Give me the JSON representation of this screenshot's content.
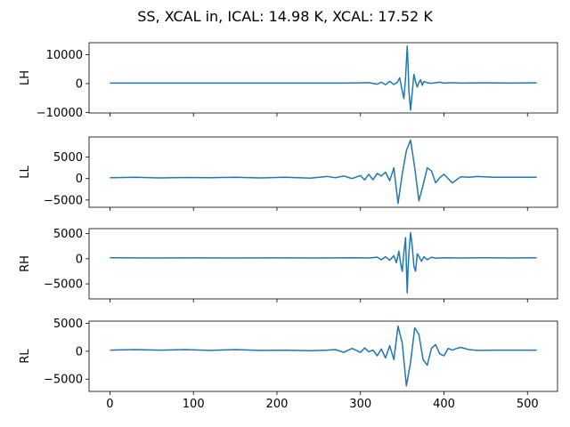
{
  "figure": {
    "title": "SS, XCAL in, ICAL: 14.98 K, XCAL: 17.52 K",
    "background": "#ffffff",
    "line_color": "#1f77b4"
  },
  "chart_data": [
    {
      "type": "line",
      "name": "LH",
      "ylabel": "LH",
      "xlim": [
        -25,
        536
      ],
      "ylim": [
        -10200,
        14200
      ],
      "yticks": [
        -10000,
        0,
        10000
      ],
      "ytick_labels": [
        "−10000",
        "0",
        "10000"
      ],
      "xticks": [
        0,
        100,
        200,
        300,
        400,
        500
      ],
      "xtick_labels": [],
      "grid": false,
      "x": [
        0,
        50,
        100,
        150,
        200,
        250,
        280,
        300,
        310,
        320,
        325,
        330,
        335,
        340,
        344,
        347,
        350,
        352,
        354,
        356,
        357,
        358,
        360,
        362,
        364,
        366,
        368,
        370,
        372,
        374,
        376,
        380,
        385,
        390,
        395,
        400,
        410,
        420,
        450,
        480,
        511
      ],
      "y": [
        200,
        180,
        180,
        200,
        200,
        200,
        200,
        250,
        350,
        -200,
        500,
        -400,
        800,
        -300,
        400,
        2000,
        -2500,
        -5200,
        2000,
        13000,
        6500,
        -2500,
        -9200,
        -3000,
        3200,
        700,
        -1200,
        300,
        1300,
        -600,
        700,
        300,
        100,
        300,
        500,
        200,
        300,
        200,
        250,
        200,
        250
      ]
    },
    {
      "type": "line",
      "name": "LL",
      "ylabel": "LL",
      "xlim": [
        -25,
        536
      ],
      "ylim": [
        -6700,
        9700
      ],
      "yticks": [
        -5000,
        0,
        5000
      ],
      "ytick_labels": [
        "−5000",
        "0",
        "5000"
      ],
      "xticks": [
        0,
        100,
        200,
        300,
        400,
        500
      ],
      "xtick_labels": [],
      "grid": false,
      "x": [
        0,
        30,
        60,
        90,
        120,
        150,
        180,
        210,
        240,
        260,
        270,
        280,
        290,
        300,
        305,
        310,
        315,
        320,
        325,
        330,
        335,
        340,
        345,
        350,
        355,
        360,
        365,
        370,
        375,
        380,
        385,
        390,
        395,
        400,
        405,
        410,
        420,
        430,
        440,
        460,
        480,
        511
      ],
      "y": [
        200,
        300,
        150,
        250,
        200,
        300,
        150,
        300,
        100,
        500,
        200,
        600,
        0,
        700,
        -300,
        1000,
        -300,
        1200,
        600,
        1500,
        -500,
        2500,
        -5800,
        1000,
        6500,
        9000,
        2500,
        -5200,
        -1500,
        2500,
        1800,
        -1000,
        200,
        1000,
        0,
        -1000,
        400,
        300,
        500,
        300,
        300,
        300
      ]
    },
    {
      "type": "line",
      "name": "RH",
      "ylabel": "RH",
      "xlim": [
        -25,
        536
      ],
      "ylim": [
        -8000,
        6000
      ],
      "yticks": [
        -5000,
        0,
        5000
      ],
      "ytick_labels": [
        "−5000",
        "0",
        "5000"
      ],
      "xticks": [
        0,
        100,
        200,
        300,
        400,
        500
      ],
      "xtick_labels": [],
      "grid": false,
      "x": [
        0,
        50,
        100,
        150,
        200,
        250,
        290,
        310,
        320,
        325,
        330,
        335,
        340,
        343,
        346,
        348,
        350,
        352,
        354,
        356,
        357,
        358,
        360,
        362,
        364,
        366,
        368,
        370,
        373,
        376,
        380,
        385,
        390,
        400,
        420,
        450,
        480,
        511
      ],
      "y": [
        200,
        150,
        180,
        150,
        180,
        150,
        200,
        150,
        300,
        -200,
        400,
        -300,
        600,
        -800,
        1500,
        -800,
        -2500,
        1200,
        4200,
        -6800,
        -2000,
        1000,
        5200,
        2500,
        -1500,
        -2500,
        1000,
        500,
        -500,
        400,
        -200,
        300,
        100,
        200,
        150,
        200,
        150,
        200
      ]
    },
    {
      "type": "line",
      "name": "RL",
      "ylabel": "RL",
      "xlim": [
        -25,
        536
      ],
      "ylim": [
        -7200,
        5400
      ],
      "yticks": [
        -5000,
        0,
        5000
      ],
      "ytick_labels": [
        "−5000",
        "0",
        "5000"
      ],
      "xticks": [
        0,
        100,
        200,
        300,
        400,
        500
      ],
      "xtick_labels": [
        "0",
        "100",
        "200",
        "300",
        "400",
        "500"
      ],
      "grid": false,
      "x": [
        0,
        30,
        60,
        90,
        120,
        150,
        180,
        210,
        240,
        260,
        270,
        280,
        290,
        300,
        305,
        310,
        315,
        320,
        325,
        330,
        335,
        340,
        345,
        350,
        355,
        360,
        365,
        370,
        375,
        380,
        385,
        390,
        395,
        400,
        405,
        410,
        415,
        420,
        430,
        440,
        460,
        480,
        511
      ],
      "y": [
        200,
        300,
        200,
        300,
        150,
        300,
        150,
        200,
        100,
        200,
        300,
        -200,
        500,
        -200,
        600,
        -100,
        200,
        -800,
        400,
        -1200,
        1000,
        -1500,
        4500,
        1500,
        -6200,
        -2000,
        4200,
        3000,
        -1500,
        -2500,
        500,
        1200,
        -500,
        -800,
        500,
        200,
        500,
        700,
        300,
        150,
        200,
        200,
        200
      ]
    }
  ]
}
